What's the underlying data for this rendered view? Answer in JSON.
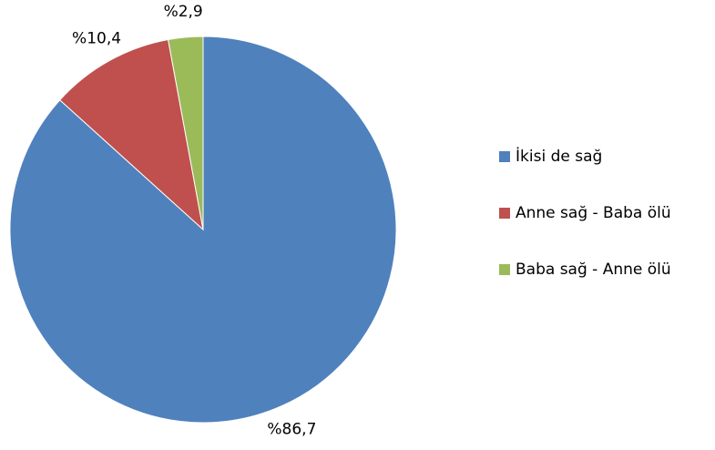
{
  "chart_data": {
    "type": "pie",
    "categories": [
      "İkisi de sağ",
      "Anne sağ - Baba ölü",
      "Baba sağ - Anne ölü"
    ],
    "values": [
      86.7,
      10.4,
      2.9
    ],
    "value_labels": [
      "%86,7",
      "%10,4",
      "%2,9"
    ],
    "colors": [
      "#4f81bd",
      "#c0504d",
      "#9bbb59"
    ],
    "legend": "right"
  }
}
